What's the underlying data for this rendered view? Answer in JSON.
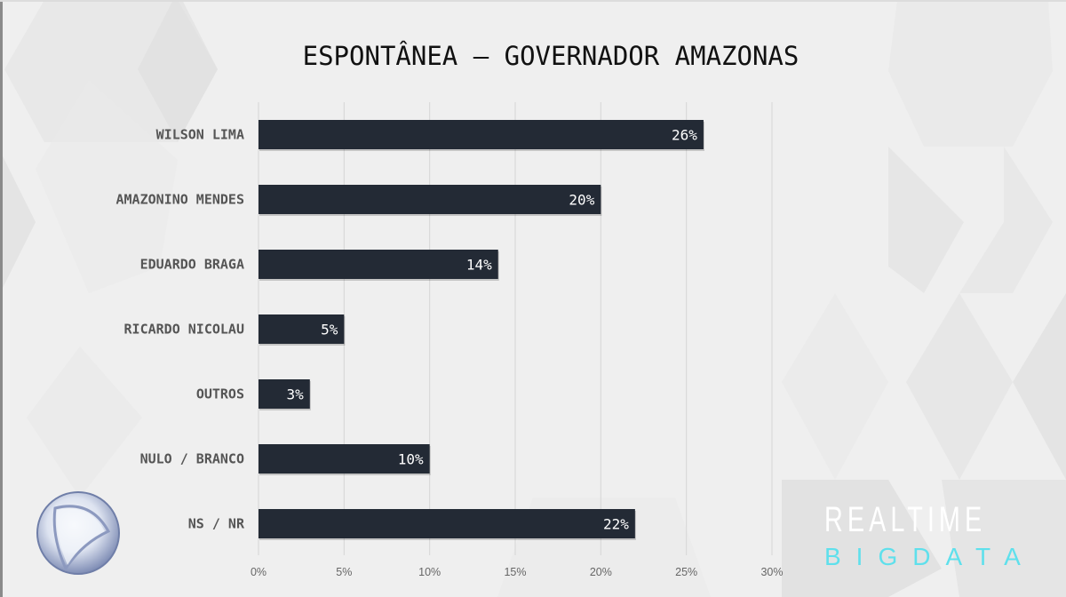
{
  "chart_data": {
    "type": "bar",
    "orientation": "horizontal",
    "title": "ESPONTÂNEA – GOVERNADOR AMAZONAS",
    "categories": [
      "WILSON LIMA",
      "AMAZONINO MENDES",
      "EDUARDO BRAGA",
      "RICARDO NICOLAU",
      "OUTROS",
      "NULO / BRANCO",
      "NS / NR"
    ],
    "values": [
      26,
      20,
      14,
      5,
      3,
      10,
      22
    ],
    "value_labels": [
      "26%",
      "20%",
      "14%",
      "5%",
      "3%",
      "10%",
      "22%"
    ],
    "xlim": [
      0,
      30
    ],
    "xticks": [
      0,
      5,
      10,
      15,
      20,
      25,
      30
    ],
    "xtick_labels": [
      "0%",
      "5%",
      "10%",
      "15%",
      "20%",
      "25%",
      "30%"
    ],
    "xlabel": "",
    "ylabel": "",
    "grid": true,
    "bar_color": "#232a35"
  },
  "branding": {
    "logo_line1": "REALTIME",
    "logo_line2": "BIGDATA",
    "logo_line2_color": "#5fe0ec",
    "broadcaster_logo": "record-globe-icon"
  }
}
